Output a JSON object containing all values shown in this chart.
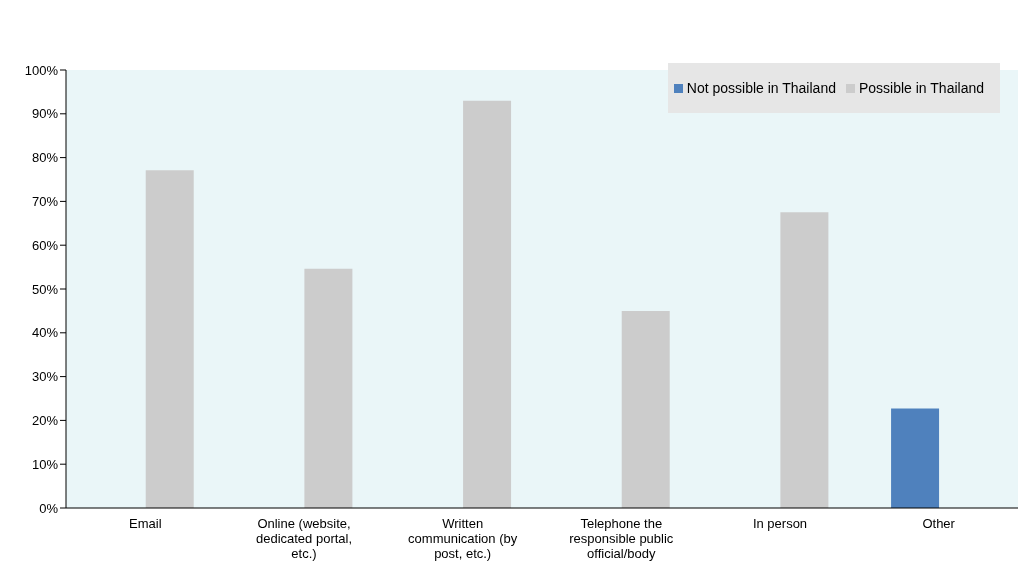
{
  "chart_data": {
    "type": "bar",
    "categories": [
      "Email",
      "Online (website, dedicated portal, etc.)",
      "Written communication (by post, etc.)",
      "Telephone the responsible public official/body",
      "In person",
      "Other"
    ],
    "series": [
      {
        "name": "Not possible in Thailand",
        "color": "#4f81bd",
        "values": [
          null,
          null,
          null,
          null,
          null,
          22.7
        ]
      },
      {
        "name": "Possible in Thailand",
        "color": "#cccccc",
        "values": [
          77.1,
          54.6,
          93.0,
          45.0,
          67.5,
          null
        ]
      }
    ],
    "ylim": [
      0,
      100
    ],
    "yticks": [
      {
        "value": 0,
        "label": "0%"
      },
      {
        "value": 10,
        "label": "10%"
      },
      {
        "value": 20,
        "label": "20%"
      },
      {
        "value": 30,
        "label": "30%"
      },
      {
        "value": 40,
        "label": "40%"
      },
      {
        "value": 50,
        "label": "50%"
      },
      {
        "value": 60,
        "label": "60%"
      },
      {
        "value": 70,
        "label": "70%"
      },
      {
        "value": 80,
        "label": "80%"
      },
      {
        "value": 90,
        "label": "90%"
      },
      {
        "value": 100,
        "label": "100%"
      }
    ],
    "legend": "top right"
  }
}
